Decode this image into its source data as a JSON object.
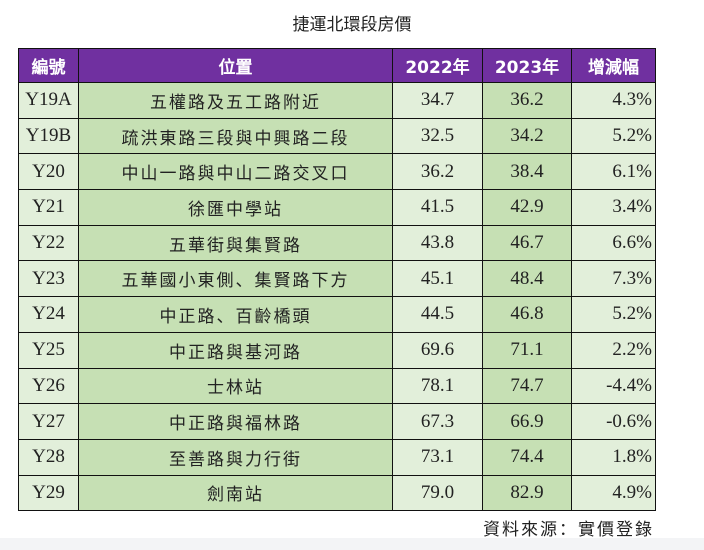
{
  "title": "捷運北環段房價",
  "headers": [
    "編號",
    "位置",
    "2022年",
    "2023年",
    "增減幅"
  ],
  "rows": [
    [
      "Y19A",
      "五權路及五工路附近",
      "34.7",
      "36.2",
      "4.3%"
    ],
    [
      "Y19B",
      "疏洪東路三段與中興路二段",
      "32.5",
      "34.2",
      "5.2%"
    ],
    [
      "Y20",
      "中山一路與中山二路交叉口",
      "36.2",
      "38.4",
      "6.1%"
    ],
    [
      "Y21",
      "徐匯中學站",
      "41.5",
      "42.9",
      "3.4%"
    ],
    [
      "Y22",
      "五華街與集賢路",
      "43.8",
      "46.7",
      "6.6%"
    ],
    [
      "Y23",
      "五華國小東側、集賢路下方",
      "45.1",
      "48.4",
      "7.3%"
    ],
    [
      "Y24",
      "中正路、百齡橋頭",
      "44.5",
      "46.8",
      "5.2%"
    ],
    [
      "Y25",
      "中正路與基河路",
      "69.6",
      "71.1",
      "2.2%"
    ],
    [
      "Y26",
      "士林站",
      "78.1",
      "74.7",
      "-4.4%"
    ],
    [
      "Y27",
      "中正路與福林路",
      "67.3",
      "66.9",
      "-0.6%"
    ],
    [
      "Y28",
      "至善路與力行街",
      "73.1",
      "74.4",
      "1.8%"
    ],
    [
      "Y29",
      "劍南站",
      "79.0",
      "82.9",
      "4.9%"
    ]
  ],
  "source": "資料來源：實價登錄",
  "colors": {
    "header": "#7030a0",
    "light_green": "#e2efda",
    "green": "#c6e0b4"
  }
}
